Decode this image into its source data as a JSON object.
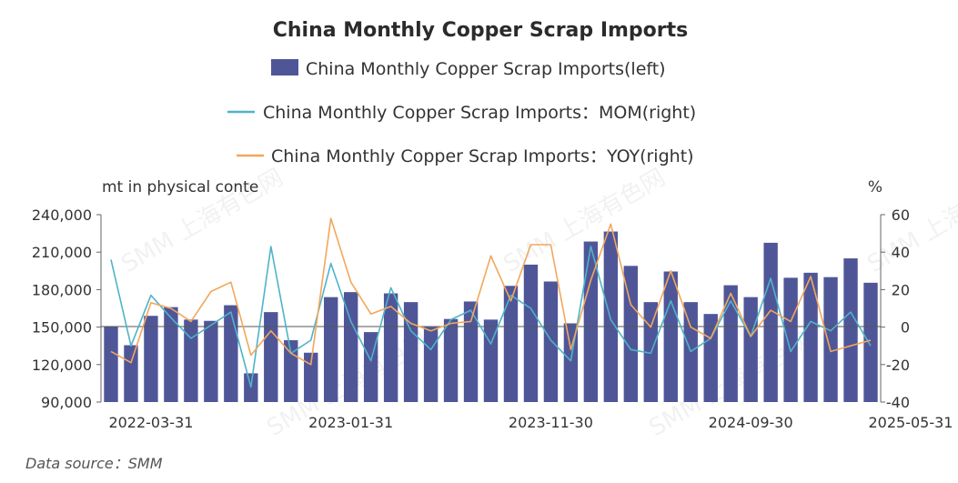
{
  "chart_data": {
    "type": "bar",
    "title": "China Monthly Copper Scrap Imports",
    "ylabel_left": "mt in physical conte",
    "ylabel_right": "%",
    "y_left_range": [
      90000,
      240000
    ],
    "y_left_ticks": [
      "240,000",
      "210,000",
      "180,000",
      "150,000",
      "120,000",
      "90,000"
    ],
    "y_right_range": [
      -40,
      60
    ],
    "y_right_ticks": [
      "60",
      "40",
      "20",
      "0",
      "-20",
      "-40"
    ],
    "x_tick_labels": [
      {
        "index": 2,
        "label": "2022-03-31"
      },
      {
        "index": 12,
        "label": "2023-01-31"
      },
      {
        "index": 22,
        "label": "2023-11-30"
      },
      {
        "index": 32,
        "label": "2024-09-30"
      },
      {
        "index": 40,
        "label": "2025-05-31"
      }
    ],
    "source": "Data source：SMM",
    "watermark": "SMM 上海有色网",
    "colors": {
      "bar": "#4f5698",
      "mom": "#4fb3c8",
      "yoy": "#f2a75c",
      "axis": "#666666"
    },
    "series": [
      {
        "name": "China Monthly Copper Scrap Imports(left)",
        "kind": "bar",
        "values": [
          150500,
          135500,
          159000,
          166000,
          156000,
          155000,
          167500,
          113000,
          162000,
          139500,
          129500,
          174000,
          178000,
          146000,
          177000,
          170000,
          150000,
          156500,
          170500,
          156000,
          183000,
          200000,
          186500,
          153000,
          218500,
          226500,
          199000,
          170000,
          194500,
          170000,
          160500,
          183500,
          174000,
          217500,
          189500,
          193500,
          190000,
          205000,
          185500
        ]
      },
      {
        "name": "China Monthly Copper Scrap Imports：MOM(right)",
        "kind": "line",
        "values": [
          36,
          -10,
          17,
          5,
          -6,
          1,
          8,
          -32,
          43,
          -14,
          -7,
          34,
          3,
          -18,
          21,
          -2,
          -12,
          4,
          9,
          -9,
          17,
          10,
          -7,
          -18,
          43,
          4,
          -12,
          -14,
          14,
          -13,
          -6,
          14,
          -5,
          26,
          -13,
          3,
          -2,
          8,
          -10
        ]
      },
      {
        "name": "China Monthly Copper Scrap Imports：YOY(right)",
        "kind": "line",
        "values": [
          -13,
          -19,
          13,
          10,
          3,
          19,
          24,
          -15,
          -2,
          -14,
          -20,
          58,
          24,
          7,
          11,
          2,
          -2,
          2,
          3,
          38,
          14,
          44,
          44,
          -12,
          25,
          55,
          12,
          0,
          30,
          0,
          -6,
          18,
          -5,
          9,
          3,
          27,
          -13,
          -10,
          -7
        ]
      }
    ]
  }
}
